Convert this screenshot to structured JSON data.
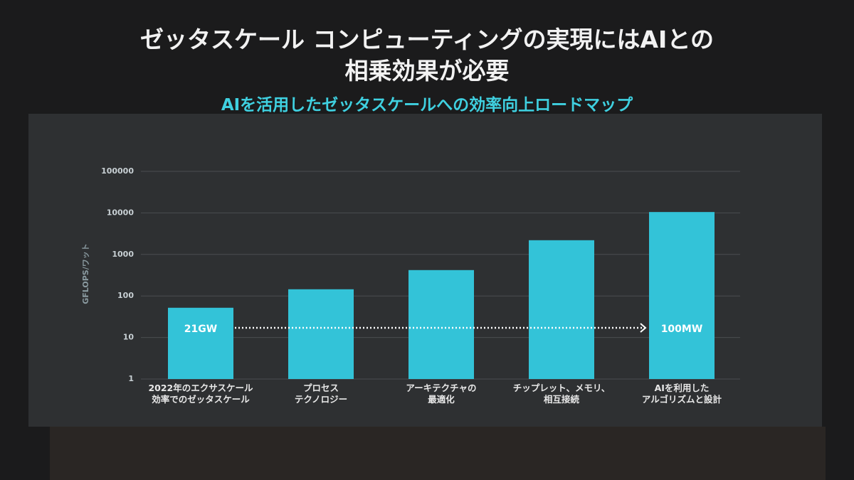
{
  "chart_data": {
    "type": "bar",
    "title": "ゼッタスケール コンピューティングの実現にはAIとの\n相乗効果が必要",
    "subtitle": "AIを活用したゼッタスケールへの効率向上ロードマップ",
    "y_label": "GFLOPS/ワット",
    "categories": [
      "2022年のエクサスケール\n効率でのゼッタスケール",
      "プロセス\nテクノロジー",
      "アーキテクチャの\n最適化",
      "チップレット、メモリ、\n相互接続",
      "AIを利用した\nアルゴリズムと設計"
    ],
    "values": [
      52,
      145,
      420,
      2200,
      10500
    ],
    "color": "#33c3d8",
    "log": true,
    "ylim": [
      1,
      100000
    ],
    "yticks": [
      1,
      10,
      100,
      1000,
      10000,
      100000
    ],
    "grid": true,
    "annotations": [
      "21GW",
      "100MW"
    ]
  }
}
